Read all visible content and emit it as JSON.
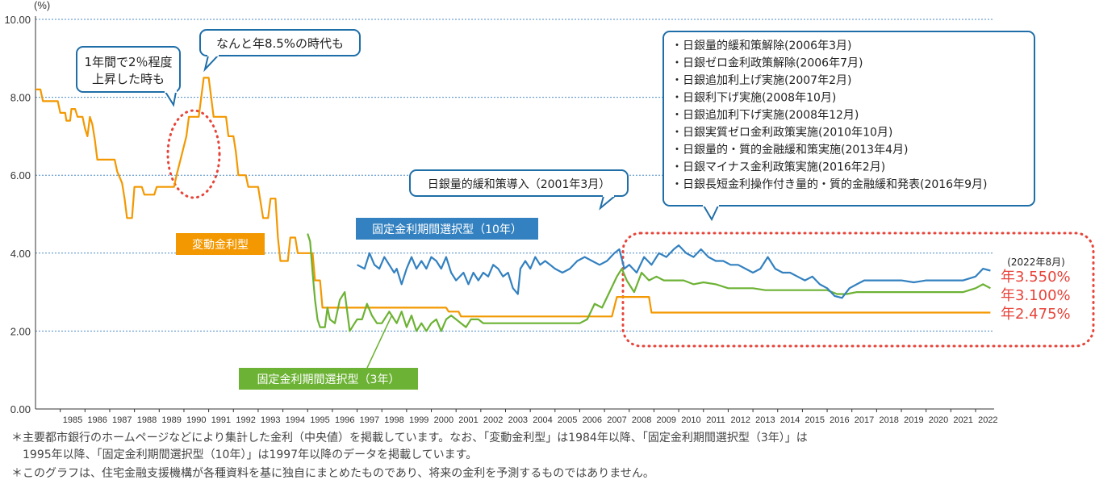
{
  "chart_data": {
    "type": "line",
    "unit_label": "(%)",
    "ylim": [
      0,
      10
    ],
    "y_ticks": [
      "0.00",
      "2.00",
      "4.00",
      "6.00",
      "8.00",
      "10.00"
    ],
    "x_ticks": [
      "1985",
      "1986",
      "1987",
      "1988",
      "1989",
      "1990",
      "1991",
      "1992",
      "1993",
      "1994",
      "1995",
      "1996",
      "1997",
      "1998",
      "1999",
      "2000",
      "2001",
      "2002",
      "2003",
      "2004",
      "2005",
      "2006",
      "2007",
      "2008",
      "2009",
      "2010",
      "2011",
      "2012",
      "2013",
      "2014",
      "2015",
      "2016",
      "2017",
      "2018",
      "2019",
      "2020",
      "2021",
      "2022"
    ],
    "grid": "horizontal dotted",
    "series": [
      {
        "name": "変動金利型",
        "color": "#f39800",
        "points": [
          [
            1984.0,
            8.2
          ],
          [
            1984.2,
            8.2
          ],
          [
            1984.3,
            7.9
          ],
          [
            1984.9,
            7.9
          ],
          [
            1985.0,
            7.6
          ],
          [
            1985.2,
            7.6
          ],
          [
            1985.25,
            7.4
          ],
          [
            1985.4,
            7.4
          ],
          [
            1985.45,
            7.7
          ],
          [
            1985.6,
            7.7
          ],
          [
            1985.7,
            7.5
          ],
          [
            1985.9,
            7.5
          ],
          [
            1986.0,
            7.2
          ],
          [
            1986.1,
            7.0
          ],
          [
            1986.2,
            7.5
          ],
          [
            1986.3,
            7.3
          ],
          [
            1986.4,
            6.9
          ],
          [
            1986.5,
            6.4
          ],
          [
            1987.2,
            6.4
          ],
          [
            1987.3,
            6.1
          ],
          [
            1987.5,
            5.8
          ],
          [
            1987.6,
            5.4
          ],
          [
            1987.7,
            4.9
          ],
          [
            1987.9,
            4.9
          ],
          [
            1988.0,
            5.7
          ],
          [
            1988.3,
            5.7
          ],
          [
            1988.4,
            5.5
          ],
          [
            1988.8,
            5.5
          ],
          [
            1988.9,
            5.7
          ],
          [
            1989.6,
            5.7
          ],
          [
            1989.7,
            6.0
          ],
          [
            1989.9,
            6.5
          ],
          [
            1990.1,
            7.0
          ],
          [
            1990.2,
            7.5
          ],
          [
            1990.6,
            7.5
          ],
          [
            1990.7,
            8.0
          ],
          [
            1990.8,
            8.5
          ],
          [
            1991.0,
            8.5
          ],
          [
            1991.1,
            8.0
          ],
          [
            1991.2,
            7.5
          ],
          [
            1991.7,
            7.5
          ],
          [
            1991.8,
            7.0
          ],
          [
            1992.0,
            7.0
          ],
          [
            1992.1,
            6.6
          ],
          [
            1992.2,
            6.0
          ],
          [
            1992.5,
            6.0
          ],
          [
            1992.6,
            5.7
          ],
          [
            1993.0,
            5.7
          ],
          [
            1993.1,
            5.3
          ],
          [
            1993.2,
            4.9
          ],
          [
            1993.4,
            4.9
          ],
          [
            1993.5,
            5.4
          ],
          [
            1993.7,
            5.4
          ],
          [
            1993.8,
            4.4
          ],
          [
            1993.9,
            3.8
          ],
          [
            1994.2,
            3.8
          ],
          [
            1994.3,
            4.4
          ],
          [
            1994.5,
            4.4
          ],
          [
            1994.6,
            4.0
          ],
          [
            1995.2,
            4.0
          ],
          [
            1995.3,
            3.3
          ],
          [
            1995.5,
            3.3
          ],
          [
            1995.6,
            2.6
          ],
          [
            2000.6,
            2.6
          ],
          [
            2000.7,
            2.5
          ],
          [
            2001.1,
            2.5
          ],
          [
            2001.2,
            2.375
          ],
          [
            2007.3,
            2.375
          ],
          [
            2007.4,
            2.625
          ],
          [
            2007.5,
            2.875
          ],
          [
            2008.8,
            2.875
          ],
          [
            2008.9,
            2.475
          ],
          [
            2022.6,
            2.475
          ]
        ]
      },
      {
        "name": "固定金利期間選択型(10年)",
        "color": "#3381c0",
        "points": [
          [
            1997.0,
            3.7
          ],
          [
            1997.3,
            3.6
          ],
          [
            1997.5,
            4.0
          ],
          [
            1997.7,
            3.7
          ],
          [
            1997.9,
            3.6
          ],
          [
            1998.1,
            3.9
          ],
          [
            1998.3,
            3.7
          ],
          [
            1998.5,
            3.5
          ],
          [
            1998.6,
            3.6
          ],
          [
            1998.8,
            3.2
          ],
          [
            1999.0,
            3.6
          ],
          [
            1999.2,
            3.9
          ],
          [
            1999.4,
            3.6
          ],
          [
            1999.6,
            3.8
          ],
          [
            1999.8,
            3.6
          ],
          [
            2000.0,
            3.9
          ],
          [
            2000.2,
            3.8
          ],
          [
            2000.4,
            3.6
          ],
          [
            2000.6,
            3.9
          ],
          [
            2000.8,
            3.5
          ],
          [
            2001.0,
            3.3
          ],
          [
            2001.3,
            3.5
          ],
          [
            2001.5,
            3.2
          ],
          [
            2001.7,
            3.5
          ],
          [
            2001.9,
            3.3
          ],
          [
            2002.1,
            3.5
          ],
          [
            2002.3,
            3.4
          ],
          [
            2002.5,
            3.7
          ],
          [
            2002.7,
            3.6
          ],
          [
            2002.9,
            3.4
          ],
          [
            2003.1,
            3.5
          ],
          [
            2003.3,
            3.1
          ],
          [
            2003.5,
            2.95
          ],
          [
            2003.6,
            3.6
          ],
          [
            2003.8,
            3.8
          ],
          [
            2004.0,
            3.6
          ],
          [
            2004.2,
            3.9
          ],
          [
            2004.4,
            3.7
          ],
          [
            2004.6,
            3.8
          ],
          [
            2004.8,
            3.7
          ],
          [
            2005.0,
            3.6
          ],
          [
            2005.3,
            3.5
          ],
          [
            2005.6,
            3.6
          ],
          [
            2005.9,
            3.8
          ],
          [
            2006.2,
            3.9
          ],
          [
            2006.5,
            3.8
          ],
          [
            2006.8,
            3.7
          ],
          [
            2007.1,
            3.8
          ],
          [
            2007.4,
            4.0
          ],
          [
            2007.6,
            4.1
          ],
          [
            2007.8,
            3.6
          ],
          [
            2008.0,
            3.7
          ],
          [
            2008.3,
            3.5
          ],
          [
            2008.6,
            3.9
          ],
          [
            2008.9,
            3.7
          ],
          [
            2009.2,
            4.0
          ],
          [
            2009.5,
            3.9
          ],
          [
            2009.8,
            4.1
          ],
          [
            2010.0,
            4.2
          ],
          [
            2010.3,
            4.0
          ],
          [
            2010.6,
            3.9
          ],
          [
            2010.9,
            4.1
          ],
          [
            2011.2,
            3.9
          ],
          [
            2011.5,
            3.8
          ],
          [
            2011.8,
            3.8
          ],
          [
            2012.1,
            3.7
          ],
          [
            2012.4,
            3.7
          ],
          [
            2012.7,
            3.6
          ],
          [
            2013.0,
            3.5
          ],
          [
            2013.3,
            3.6
          ],
          [
            2013.6,
            3.9
          ],
          [
            2013.9,
            3.6
          ],
          [
            2014.2,
            3.5
          ],
          [
            2014.5,
            3.5
          ],
          [
            2014.8,
            3.4
          ],
          [
            2015.1,
            3.3
          ],
          [
            2015.4,
            3.4
          ],
          [
            2015.7,
            3.2
          ],
          [
            2016.0,
            3.1
          ],
          [
            2016.3,
            2.9
          ],
          [
            2016.6,
            2.85
          ],
          [
            2016.9,
            3.1
          ],
          [
            2017.2,
            3.2
          ],
          [
            2017.5,
            3.3
          ],
          [
            2018.0,
            3.3
          ],
          [
            2018.5,
            3.3
          ],
          [
            2019.0,
            3.3
          ],
          [
            2019.5,
            3.25
          ],
          [
            2020.0,
            3.3
          ],
          [
            2020.5,
            3.3
          ],
          [
            2021.0,
            3.3
          ],
          [
            2021.5,
            3.3
          ],
          [
            2022.0,
            3.4
          ],
          [
            2022.3,
            3.6
          ],
          [
            2022.6,
            3.55
          ]
        ]
      },
      {
        "name": "固定金利期間選択型(3年)",
        "color": "#6cb234",
        "points": [
          [
            1995.0,
            4.5
          ],
          [
            1995.1,
            4.3
          ],
          [
            1995.2,
            3.5
          ],
          [
            1995.3,
            2.8
          ],
          [
            1995.4,
            2.3
          ],
          [
            1995.5,
            2.1
          ],
          [
            1995.7,
            2.1
          ],
          [
            1995.8,
            2.6
          ],
          [
            1995.9,
            2.3
          ],
          [
            1996.1,
            2.2
          ],
          [
            1996.3,
            2.8
          ],
          [
            1996.5,
            3.0
          ],
          [
            1996.6,
            2.5
          ],
          [
            1996.7,
            2.0
          ],
          [
            1996.9,
            2.2
          ],
          [
            1997.0,
            2.3
          ],
          [
            1997.2,
            2.3
          ],
          [
            1997.4,
            2.7
          ],
          [
            1997.6,
            2.4
          ],
          [
            1997.8,
            2.2
          ],
          [
            1998.0,
            2.2
          ],
          [
            1998.3,
            2.5
          ],
          [
            1998.6,
            2.2
          ],
          [
            1998.8,
            2.5
          ],
          [
            1999.0,
            2.1
          ],
          [
            1999.2,
            2.4
          ],
          [
            1999.4,
            2.0
          ],
          [
            1999.6,
            2.2
          ],
          [
            1999.8,
            2.0
          ],
          [
            2000.0,
            2.2
          ],
          [
            2000.2,
            2.3
          ],
          [
            2000.4,
            2.0
          ],
          [
            2000.6,
            2.3
          ],
          [
            2000.8,
            2.4
          ],
          [
            2001.0,
            2.3
          ],
          [
            2001.2,
            2.2
          ],
          [
            2001.4,
            2.1
          ],
          [
            2001.6,
            2.3
          ],
          [
            2001.9,
            2.3
          ],
          [
            2002.1,
            2.2
          ],
          [
            2003.0,
            2.2
          ],
          [
            2004.0,
            2.2
          ],
          [
            2005.0,
            2.2
          ],
          [
            2006.0,
            2.2
          ],
          [
            2006.3,
            2.3
          ],
          [
            2006.6,
            2.7
          ],
          [
            2006.9,
            2.6
          ],
          [
            2007.2,
            3.0
          ],
          [
            2007.5,
            3.4
          ],
          [
            2007.7,
            3.6
          ],
          [
            2007.9,
            3.3
          ],
          [
            2008.2,
            3.0
          ],
          [
            2008.5,
            3.5
          ],
          [
            2008.8,
            3.3
          ],
          [
            2009.1,
            3.4
          ],
          [
            2009.4,
            3.3
          ],
          [
            2009.8,
            3.3
          ],
          [
            2010.2,
            3.3
          ],
          [
            2010.6,
            3.2
          ],
          [
            2011.0,
            3.25
          ],
          [
            2011.5,
            3.2
          ],
          [
            2012.0,
            3.1
          ],
          [
            2012.5,
            3.1
          ],
          [
            2013.0,
            3.1
          ],
          [
            2013.5,
            3.05
          ],
          [
            2014.0,
            3.05
          ],
          [
            2014.5,
            3.05
          ],
          [
            2015.0,
            3.05
          ],
          [
            2015.5,
            3.05
          ],
          [
            2016.0,
            3.05
          ],
          [
            2016.4,
            2.95
          ],
          [
            2016.8,
            2.95
          ],
          [
            2017.2,
            3.0
          ],
          [
            2017.6,
            3.0
          ],
          [
            2018.0,
            3.0
          ],
          [
            2018.5,
            3.0
          ],
          [
            2019.0,
            3.0
          ],
          [
            2019.5,
            3.0
          ],
          [
            2020.0,
            3.0
          ],
          [
            2020.5,
            3.0
          ],
          [
            2021.0,
            3.0
          ],
          [
            2021.5,
            3.0
          ],
          [
            2022.0,
            3.1
          ],
          [
            2022.3,
            3.2
          ],
          [
            2022.6,
            3.1
          ]
        ]
      }
    ],
    "latest_label": "(2022年8月)",
    "latest_values": [
      "年3.550%",
      "年3.100%",
      "年2.475%"
    ]
  },
  "callouts": {
    "rise_2pct": "1年間で2％程度\n上昇した時も",
    "peak_85": "なんと年8.5%の時代も",
    "qe_2001": "日銀量的緩和策導入（2001年3月）",
    "events": [
      "・日銀量的緩和策解除(2006年3月)",
      "・日銀ゼロ金利政策解除(2006年7月)",
      "・日銀追加利上げ実施(2007年2月)",
      "・日銀利下げ実施(2008年10月)",
      "・日銀追加利下げ実施(2008年12月)",
      "・日銀実質ゼロ金利政策実施(2010年10月)",
      "・日銀量的・質的金融緩和策実施(2013年4月)",
      "・日銀マイナス金利政策実施(2016年2月)",
      "・日銀長短金利操作付き量的・質的金融緩和発表(2016年9月)"
    ]
  },
  "series_labels": {
    "variable": "変動金利型",
    "fixed10": "固定金利期間選択型（10年）",
    "fixed3": "固定金利期間選択型（3年）"
  },
  "notes": {
    "note1": "＊主要都市銀行のホームページなどにより集計した金利（中央値）を掲載しています。なお、「変動金利型」は1984年以降、「固定金利期間選択型（3年）」は\n　1995年以降、「固定金利期間選択型（10年）」は1997年以降のデータを掲載しています。",
    "note2": "＊このグラフは、住宅金融支援機構が各種資料を基に独自にまとめたものであり、将来の金利を予測するものではありません。"
  },
  "colors": {
    "orange": "#f39800",
    "blue": "#3381c0",
    "green": "#6cb234",
    "red": "#e7443a",
    "axis": "#333333"
  }
}
